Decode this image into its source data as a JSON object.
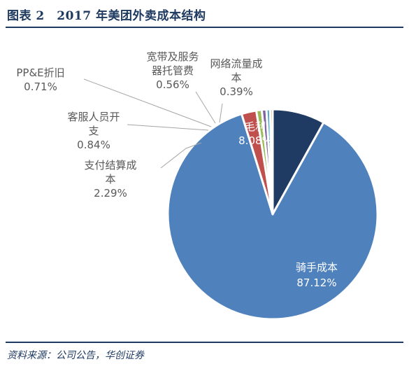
{
  "figure": {
    "title": "图表 2　2017 年美团外卖成本结构",
    "source": "资料来源：公司公告，华创证券"
  },
  "colors": {
    "rider": "#4f81bd",
    "settlement": "#c0504d",
    "customer_service": "#9bbb59",
    "ppe": "#8064a2",
    "bandwidth": "#4bacc6",
    "traffic": "#f79646",
    "gross_profit": "#1f3b63",
    "leader": "#a6a6a6",
    "text": "#595959",
    "navy": "#1f3a60"
  },
  "chart_data": {
    "type": "pie",
    "title": "",
    "start_angle_deg": 0,
    "direction": "clockwise",
    "labels_position": "outside for small slices, inside for large slices",
    "slices": [
      {
        "key": "gross_profit",
        "name": "毛利",
        "value": 8.08,
        "label_lines": [
          "毛利"
        ],
        "pct_text": "8.08%"
      },
      {
        "key": "rider",
        "name": "骑手成本",
        "value": 87.12,
        "label_lines": [
          "骑手成本"
        ],
        "pct_text": "87.12%"
      },
      {
        "key": "settlement",
        "name": "支付结算成本",
        "value": 2.29,
        "label_lines": [
          "支付结算成",
          "本"
        ],
        "pct_text": "2.29%"
      },
      {
        "key": "customer_service",
        "name": "客服人员开支",
        "value": 0.84,
        "label_lines": [
          "客服人员开",
          "支"
        ],
        "pct_text": "0.84%"
      },
      {
        "key": "ppe",
        "name": "PP&E折旧",
        "value": 0.71,
        "label_lines": [
          "PP&E折旧"
        ],
        "pct_text": "0.71%"
      },
      {
        "key": "bandwidth",
        "name": "宽带及服务器托管费",
        "value": 0.56,
        "label_lines": [
          "宽带及服务",
          "器托管费"
        ],
        "pct_text": "0.56%"
      },
      {
        "key": "traffic",
        "name": "网络流量成本",
        "value": 0.39,
        "label_lines": [
          "网络流量成",
          "本"
        ],
        "pct_text": "0.39%"
      }
    ]
  }
}
